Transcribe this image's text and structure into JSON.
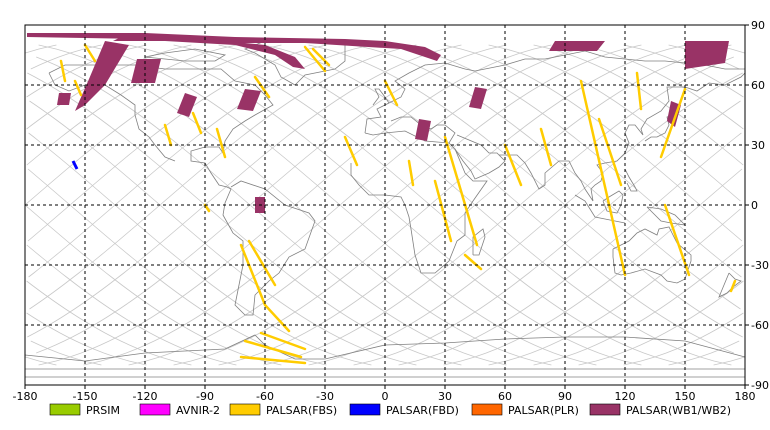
{
  "map": {
    "x_ticks": [
      "-180",
      "-150",
      "-120",
      "-90",
      "-60",
      "-30",
      "0",
      "30",
      "60",
      "90",
      "120",
      "150",
      "180"
    ],
    "y_ticks": [
      "90",
      "60",
      "30",
      "0",
      "-30",
      "-60",
      "-90"
    ],
    "lon_range": [
      -180,
      180
    ],
    "lat_range": [
      -90,
      90
    ],
    "grid": "dashed",
    "colors": {
      "frame": "#000000",
      "grid": "#000000",
      "coast": "#808080",
      "orbit": "#c8c8c8"
    }
  },
  "legend": [
    {
      "label": "PRSIM",
      "color": "#99cc00"
    },
    {
      "label": "AVNIR-2",
      "color": "#ff00ff"
    },
    {
      "label": "PALSAR(FBS)",
      "color": "#ffcc00"
    },
    {
      "label": "PALSAR(FBD)",
      "color": "#0000ff"
    },
    {
      "label": "PALSAR(PLR)",
      "color": "#ff6600"
    },
    {
      "label": "PALSAR(WB1/WB2)",
      "color": "#993366"
    }
  ],
  "coverage": {
    "wb": [
      {
        "lonlat": [
          [
            -179,
            86
          ],
          [
            -120,
            86
          ],
          [
            -75,
            84
          ],
          [
            -20,
            83
          ],
          [
            0,
            82
          ],
          [
            20,
            79
          ],
          [
            28,
            75
          ],
          [
            26,
            72
          ],
          [
            8,
            78
          ],
          [
            -40,
            81
          ],
          [
            -80,
            81
          ],
          [
            -120,
            83
          ],
          [
            -179,
            84
          ]
        ]
      },
      {
        "lonlat": [
          [
            -128,
            86
          ],
          [
            -90,
            83
          ],
          [
            -60,
            80
          ],
          [
            -45,
            74
          ],
          [
            -40,
            68
          ],
          [
            -46,
            69
          ],
          [
            -55,
            75
          ],
          [
            -75,
            80
          ],
          [
            -110,
            82
          ],
          [
            -136,
            82
          ]
        ]
      },
      {
        "lonlat": [
          [
            -140,
            82
          ],
          [
            -128,
            80
          ],
          [
            -140,
            60
          ],
          [
            -150,
            50
          ],
          [
            -155,
            47
          ],
          [
            -148,
            63
          ]
        ]
      },
      {
        "lonlat": [
          [
            -163,
            56
          ],
          [
            -157,
            56
          ],
          [
            -158,
            50
          ],
          [
            -164,
            50
          ]
        ]
      },
      {
        "lonlat": [
          [
            -124,
            73
          ],
          [
            -112,
            73
          ],
          [
            -115,
            61
          ],
          [
            -127,
            61
          ]
        ]
      },
      {
        "lonlat": [
          [
            -100,
            56
          ],
          [
            -94,
            54
          ],
          [
            -98,
            44
          ],
          [
            -104,
            46
          ]
        ]
      },
      {
        "lonlat": [
          [
            -70,
            58
          ],
          [
            -62,
            57
          ],
          [
            -66,
            47
          ],
          [
            -74,
            48
          ]
        ]
      },
      {
        "lonlat": [
          [
            -65,
            4
          ],
          [
            -60,
            4
          ],
          [
            -60,
            -4
          ],
          [
            -65,
            -4
          ]
        ]
      },
      {
        "lonlat": [
          [
            17,
            43
          ],
          [
            23,
            42
          ],
          [
            21,
            32
          ],
          [
            15,
            33
          ]
        ]
      },
      {
        "lonlat": [
          [
            45,
            59
          ],
          [
            51,
            58
          ],
          [
            48,
            48
          ],
          [
            42,
            49
          ]
        ]
      },
      {
        "lonlat": [
          [
            85,
            82
          ],
          [
            110,
            82
          ],
          [
            106,
            77
          ],
          [
            82,
            77
          ]
        ]
      },
      {
        "lonlat": [
          [
            150,
            82
          ],
          [
            172,
            82
          ],
          [
            170,
            71
          ],
          [
            150,
            68
          ]
        ]
      },
      {
        "lonlat": [
          [
            143,
            52
          ],
          [
            148,
            50
          ],
          [
            145,
            39
          ],
          [
            141,
            42
          ]
        ]
      }
    ],
    "fbs": [
      {
        "lonlat": [
          [
            -150,
            80
          ],
          [
            -145,
            72
          ]
        ]
      },
      {
        "lonlat": [
          [
            -162,
            72
          ],
          [
            -160,
            62
          ]
        ]
      },
      {
        "lonlat": [
          [
            -155,
            62
          ],
          [
            -152,
            55
          ]
        ]
      },
      {
        "lonlat": [
          [
            -110,
            40
          ],
          [
            -107,
            30
          ]
        ]
      },
      {
        "lonlat": [
          [
            -96,
            46
          ],
          [
            -92,
            36
          ]
        ]
      },
      {
        "lonlat": [
          [
            -84,
            38
          ],
          [
            -80,
            24
          ]
        ]
      },
      {
        "lonlat": [
          [
            -65,
            64
          ],
          [
            -58,
            54
          ]
        ]
      },
      {
        "lonlat": [
          [
            -40,
            79
          ],
          [
            -30,
            67
          ]
        ]
      },
      {
        "lonlat": [
          [
            -36,
            78
          ],
          [
            -28,
            70
          ]
        ]
      },
      {
        "lonlat": [
          [
            -90,
            0
          ],
          [
            -88,
            -3
          ]
        ]
      },
      {
        "lonlat": [
          [
            -72,
            -20
          ],
          [
            -60,
            -50
          ],
          [
            -48,
            -63
          ]
        ]
      },
      {
        "lonlat": [
          [
            -68,
            -18
          ],
          [
            -55,
            -40
          ]
        ]
      },
      {
        "lonlat": [
          [
            -62,
            -64
          ],
          [
            -40,
            -72
          ]
        ]
      },
      {
        "lonlat": [
          [
            -70,
            -68
          ],
          [
            -42,
            -76
          ]
        ]
      },
      {
        "lonlat": [
          [
            -72,
            -76
          ],
          [
            -40,
            -79
          ]
        ]
      },
      {
        "lonlat": [
          [
            -20,
            34
          ],
          [
            -14,
            20
          ]
        ]
      },
      {
        "lonlat": [
          [
            0,
            62
          ],
          [
            6,
            50
          ]
        ]
      },
      {
        "lonlat": [
          [
            12,
            22
          ],
          [
            14,
            10
          ]
        ]
      },
      {
        "lonlat": [
          [
            30,
            34
          ],
          [
            46,
            -20
          ]
        ]
      },
      {
        "lonlat": [
          [
            25,
            12
          ],
          [
            33,
            -18
          ]
        ]
      },
      {
        "lonlat": [
          [
            40,
            -25
          ],
          [
            48,
            -32
          ]
        ]
      },
      {
        "lonlat": [
          [
            60,
            30
          ],
          [
            68,
            10
          ]
        ]
      },
      {
        "lonlat": [
          [
            78,
            38
          ],
          [
            83,
            20
          ]
        ]
      },
      {
        "lonlat": [
          [
            98,
            62
          ],
          [
            120,
            -35
          ]
        ]
      },
      {
        "lonlat": [
          [
            107,
            43
          ],
          [
            118,
            10
          ]
        ]
      },
      {
        "lonlat": [
          [
            126,
            66
          ],
          [
            128,
            48
          ]
        ]
      },
      {
        "lonlat": [
          [
            140,
            0
          ],
          [
            152,
            -35
          ]
        ]
      },
      {
        "lonlat": [
          [
            150,
            58
          ],
          [
            138,
            24
          ]
        ]
      },
      {
        "lonlat": [
          [
            175,
            -38
          ],
          [
            173,
            -43
          ]
        ]
      }
    ],
    "fbd": [
      {
        "lonlat": [
          [
            -156,
            22
          ],
          [
            -154,
            18
          ]
        ]
      }
    ]
  }
}
